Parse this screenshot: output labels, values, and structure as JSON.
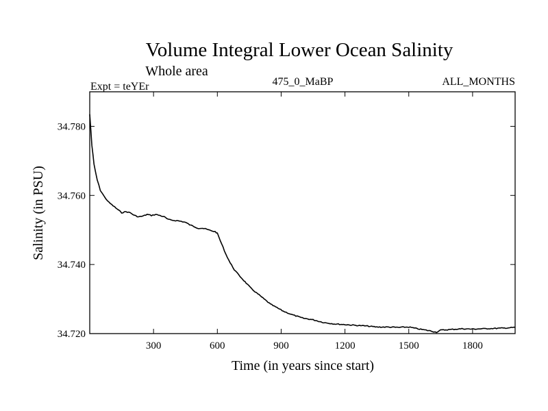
{
  "chart_data": {
    "type": "line",
    "title": "Volume Integral Lower Ocean Salinity",
    "subtitle": "Whole area",
    "header_left": "Expt = teYEr",
    "header_center": "475_0_MaBP",
    "header_right": "ALL_MONTHS",
    "xlabel": "Time (in years since start)",
    "ylabel": "Salinity (in PSU)",
    "xlim": [
      0,
      2000
    ],
    "ylim": [
      34.72,
      34.79
    ],
    "xticks": [
      300,
      600,
      900,
      1200,
      1500,
      1800
    ],
    "xtick_labels": [
      "300",
      "600",
      "900",
      "1200",
      "1500",
      "1800"
    ],
    "yticks": [
      34.72,
      34.74,
      34.76,
      34.78
    ],
    "ytick_labels": [
      "34.720",
      "34.740",
      "34.760",
      "34.780"
    ],
    "series": [
      {
        "name": "Salinity",
        "color": "#000000",
        "x": [
          0,
          10,
          20,
          35,
          50,
          70,
          90,
          110,
          130,
          150,
          170,
          190,
          210,
          230,
          250,
          270,
          290,
          310,
          330,
          350,
          370,
          390,
          410,
          430,
          450,
          470,
          490,
          510,
          530,
          550,
          570,
          590,
          600,
          620,
          640,
          660,
          680,
          700,
          730,
          760,
          790,
          820,
          850,
          880,
          910,
          950,
          1000,
          1050,
          1100,
          1150,
          1200,
          1250,
          1300,
          1350,
          1400,
          1450,
          1500,
          1550,
          1600,
          1630,
          1650,
          1700,
          1750,
          1800,
          1850,
          1900,
          1950,
          2000
        ],
        "values": [
          34.7835,
          34.7745,
          34.769,
          34.7645,
          34.7615,
          34.7595,
          34.758,
          34.757,
          34.756,
          34.755,
          34.7553,
          34.755,
          34.7542,
          34.7538,
          34.754,
          34.7545,
          34.7542,
          34.7545,
          34.7542,
          34.7538,
          34.753,
          34.7528,
          34.7527,
          34.7525,
          34.7522,
          34.7515,
          34.751,
          34.7505,
          34.7505,
          34.7502,
          34.7498,
          34.7495,
          34.749,
          34.746,
          34.743,
          34.7405,
          34.7385,
          34.737,
          34.735,
          34.733,
          34.7315,
          34.73,
          34.7285,
          34.7275,
          34.7265,
          34.7255,
          34.7245,
          34.724,
          34.7232,
          34.7228,
          34.7226,
          34.7224,
          34.7222,
          34.7219,
          34.7219,
          34.7218,
          34.7219,
          34.7213,
          34.7208,
          34.7204,
          34.721,
          34.7212,
          34.7214,
          34.7213,
          34.7214,
          34.7215,
          34.7216,
          34.7218
        ]
      }
    ]
  }
}
